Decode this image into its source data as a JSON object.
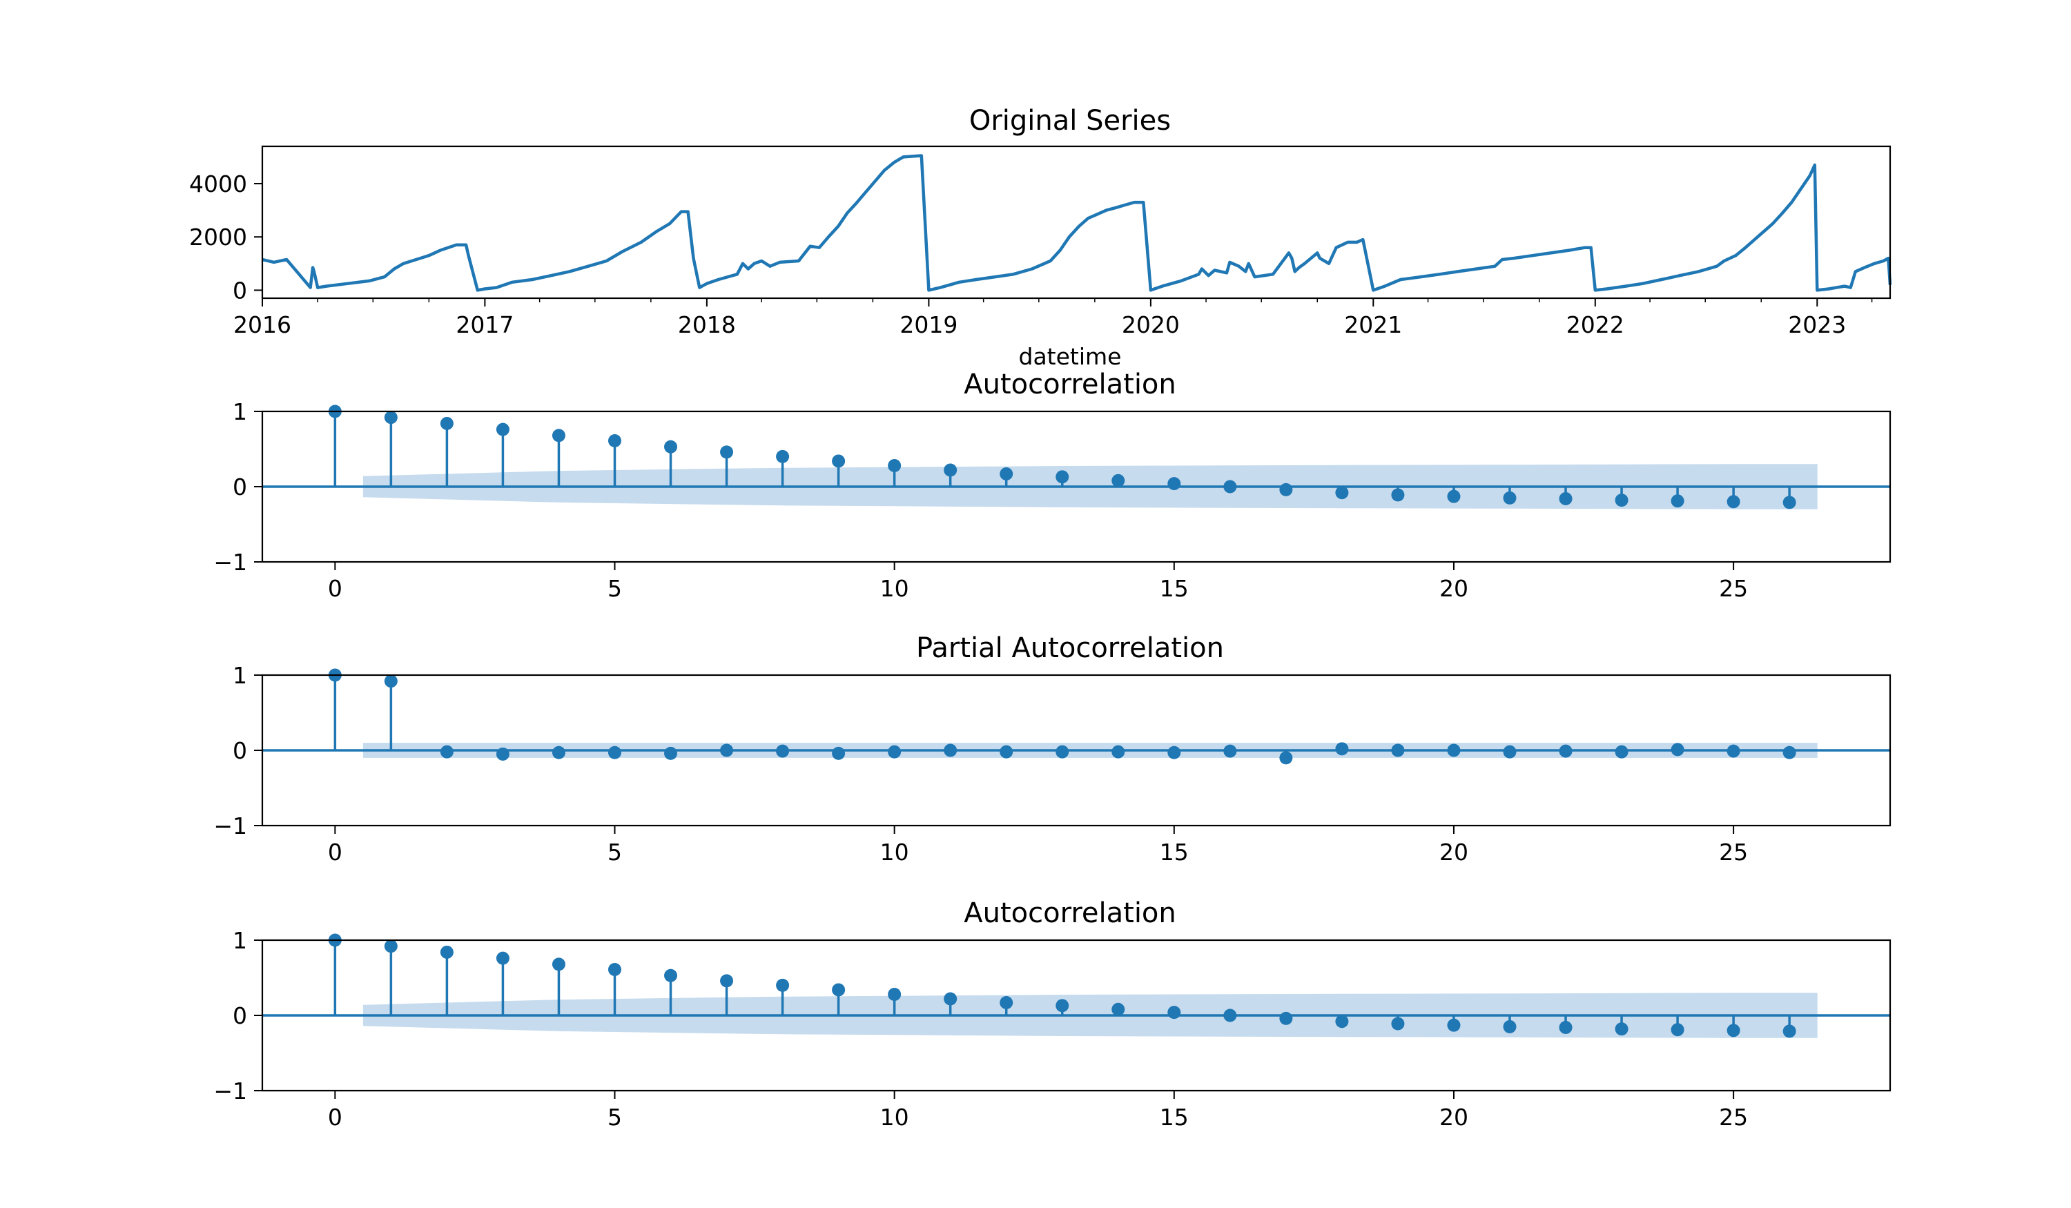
{
  "chart_data": [
    {
      "type": "line",
      "title": "Original Series",
      "xlabel": "datetime",
      "ylabel": "",
      "xlim": [
        "2016-01-01",
        "2023-05-01"
      ],
      "ylim": [
        -300,
        5400
      ],
      "xticks": [
        "2016",
        "2017",
        "2018",
        "2019",
        "2020",
        "2021",
        "2022",
        "2023"
      ],
      "yticks": [
        "0",
        "2000",
        "4000"
      ],
      "color": "#1f77b4",
      "series": [
        {
          "x": [
            "2016-01-01",
            "2016-01-20",
            "2016-02-10",
            "2016-03-20",
            "2016-03-24",
            "2016-03-26",
            "2016-04-01",
            "2016-04-15",
            "2016-05-20",
            "2016-06-25",
            "2016-07-20",
            "2016-08-05",
            "2016-08-20",
            "2016-09-10",
            "2016-10-01",
            "2016-10-20",
            "2016-11-15",
            "2016-12-01",
            "2016-12-05",
            "2016-12-20",
            "2017-01-01",
            "2017-01-20",
            "2017-02-15",
            "2017-03-20",
            "2017-04-20",
            "2017-05-20",
            "2017-06-20",
            "2017-07-20",
            "2017-08-15",
            "2017-09-15",
            "2017-10-10",
            "2017-11-01",
            "2017-11-20",
            "2017-12-01",
            "2017-12-10",
            "2017-12-20",
            "2018-01-01",
            "2018-01-20",
            "2018-02-20",
            "2018-03-01",
            "2018-03-10",
            "2018-03-20",
            "2018-04-01",
            "2018-04-15",
            "2018-05-01",
            "2018-06-01",
            "2018-06-20",
            "2018-07-05",
            "2018-07-20",
            "2018-08-05",
            "2018-08-20",
            "2018-09-05",
            "2018-09-20",
            "2018-10-05",
            "2018-10-20",
            "2018-11-05",
            "2018-11-20",
            "2018-12-20",
            "2019-01-01",
            "2019-01-20",
            "2019-02-20",
            "2019-03-20",
            "2019-04-20",
            "2019-05-20",
            "2019-06-20",
            "2019-07-20",
            "2019-08-05",
            "2019-08-20",
            "2019-09-05",
            "2019-09-20",
            "2019-10-05",
            "2019-10-20",
            "2019-11-05",
            "2019-11-20",
            "2019-12-05",
            "2019-12-20",
            "2020-01-01",
            "2020-01-20",
            "2020-02-20",
            "2020-03-20",
            "2020-03-25",
            "2020-04-05",
            "2020-04-15",
            "2020-05-05",
            "2020-05-10",
            "2020-05-25",
            "2020-06-05",
            "2020-06-10",
            "2020-06-20",
            "2020-07-20",
            "2020-08-15",
            "2020-08-20",
            "2020-08-25",
            "2020-09-01",
            "2020-09-10",
            "2020-10-01",
            "2020-10-05",
            "2020-10-20",
            "2020-11-01",
            "2020-11-20",
            "2020-12-05",
            "2020-12-15",
            "2021-01-01",
            "2021-01-20",
            "2021-02-15",
            "2021-03-20",
            "2021-04-20",
            "2021-05-20",
            "2021-06-20",
            "2021-07-20",
            "2021-08-01",
            "2021-08-20",
            "2021-09-20",
            "2021-10-20",
            "2021-11-20",
            "2021-12-15",
            "2021-12-25",
            "2022-01-01",
            "2022-01-20",
            "2022-02-20",
            "2022-03-20",
            "2022-04-20",
            "2022-05-20",
            "2022-06-20",
            "2022-07-20",
            "2022-08-01",
            "2022-08-20",
            "2022-09-05",
            "2022-09-20",
            "2022-10-05",
            "2022-10-20",
            "2022-11-05",
            "2022-11-20",
            "2022-12-05",
            "2022-12-20",
            "2022-12-28",
            "2023-01-01",
            "2023-01-20",
            "2023-02-15",
            "2023-02-25",
            "2023-03-05",
            "2023-03-20",
            "2023-04-05",
            "2023-04-20",
            "2023-04-28",
            "2023-05-01"
          ],
          "y": [
            1150,
            1050,
            1150,
            100,
            850,
            700,
            100,
            150,
            250,
            350,
            500,
            800,
            1000,
            1150,
            1300,
            1500,
            1700,
            1700,
            1300,
            0,
            50,
            100,
            300,
            400,
            550,
            700,
            900,
            1100,
            1450,
            1800,
            2200,
            2500,
            2950,
            2950,
            1200,
            100,
            250,
            400,
            600,
            1000,
            800,
            1000,
            1100,
            900,
            1050,
            1100,
            1650,
            1600,
            2000,
            2400,
            2900,
            3300,
            3700,
            4100,
            4500,
            4800,
            5000,
            5050,
            0,
            100,
            300,
            400,
            500,
            600,
            800,
            1100,
            1500,
            2000,
            2400,
            2700,
            2850,
            3000,
            3100,
            3200,
            3300,
            3300,
            0,
            150,
            350,
            600,
            800,
            550,
            750,
            650,
            1050,
            900,
            700,
            1000,
            500,
            600,
            1400,
            1200,
            700,
            850,
            1000,
            1400,
            1200,
            1000,
            1600,
            1800,
            1800,
            1900,
            0,
            150,
            400,
            500,
            600,
            700,
            800,
            900,
            1150,
            1200,
            1300,
            1400,
            1500,
            1600,
            1600,
            0,
            50,
            150,
            250,
            400,
            550,
            700,
            900,
            1100,
            1300,
            1600,
            1900,
            2200,
            2500,
            2900,
            3300,
            3800,
            4300,
            4700,
            0,
            50,
            150,
            100,
            700,
            850,
            1000,
            1100,
            1200,
            200
          ]
        }
      ]
    },
    {
      "type": "stem",
      "title": "Autocorrelation",
      "xlabel": "",
      "ylabel": "",
      "xlim": [
        -1.3,
        27.8
      ],
      "ylim": [
        -1,
        1
      ],
      "xticks": [
        "0",
        "5",
        "10",
        "15",
        "20",
        "25"
      ],
      "yticks": [
        "−1",
        "0",
        "1"
      ],
      "lags": [
        0,
        1,
        2,
        3,
        4,
        5,
        6,
        7,
        8,
        9,
        10,
        11,
        12,
        13,
        14,
        15,
        16,
        17,
        18,
        19,
        20,
        21,
        22,
        23,
        24,
        25,
        26
      ],
      "values": [
        1.0,
        0.92,
        0.84,
        0.76,
        0.68,
        0.61,
        0.53,
        0.46,
        0.4,
        0.34,
        0.28,
        0.22,
        0.17,
        0.13,
        0.08,
        0.04,
        0.0,
        -0.04,
        -0.08,
        -0.11,
        -0.13,
        -0.15,
        -0.16,
        -0.18,
        -0.19,
        -0.2,
        -0.21
      ],
      "confidence_band": [
        0.1,
        0.14,
        0.17,
        0.19,
        0.21,
        0.22,
        0.23,
        0.24,
        0.25,
        0.255,
        0.26,
        0.265,
        0.27,
        0.275,
        0.278,
        0.28,
        0.282,
        0.284,
        0.286,
        0.288,
        0.29,
        0.292,
        0.294,
        0.296,
        0.298,
        0.3,
        0.3
      ]
    },
    {
      "type": "stem",
      "title": "Partial Autocorrelation",
      "xlabel": "",
      "ylabel": "",
      "xlim": [
        -1.3,
        27.8
      ],
      "ylim": [
        -1,
        1
      ],
      "xticks": [
        "0",
        "5",
        "10",
        "15",
        "20",
        "25"
      ],
      "yticks": [
        "−1",
        "0",
        "1"
      ],
      "lags": [
        0,
        1,
        2,
        3,
        4,
        5,
        6,
        7,
        8,
        9,
        10,
        11,
        12,
        13,
        14,
        15,
        16,
        17,
        18,
        19,
        20,
        21,
        22,
        23,
        24,
        25,
        26
      ],
      "values": [
        1.0,
        0.92,
        -0.02,
        -0.05,
        -0.03,
        -0.03,
        -0.04,
        0.0,
        -0.01,
        -0.04,
        -0.02,
        0.0,
        -0.02,
        -0.02,
        -0.02,
        -0.03,
        -0.01,
        -0.1,
        0.02,
        0.0,
        0.0,
        -0.02,
        -0.01,
        -0.02,
        0.01,
        -0.01,
        -0.03
      ],
      "confidence_band": [
        0.1,
        0.1,
        0.1,
        0.1,
        0.1,
        0.1,
        0.1,
        0.1,
        0.1,
        0.1,
        0.1,
        0.1,
        0.1,
        0.1,
        0.1,
        0.1,
        0.1,
        0.1,
        0.1,
        0.1,
        0.1,
        0.1,
        0.1,
        0.1,
        0.1,
        0.1,
        0.1
      ]
    },
    {
      "type": "stem",
      "title": "Autocorrelation",
      "xlabel": "",
      "ylabel": "",
      "xlim": [
        -1.3,
        27.8
      ],
      "ylim": [
        -1,
        1
      ],
      "xticks": [
        "0",
        "5",
        "10",
        "15",
        "20",
        "25"
      ],
      "yticks": [
        "−1",
        "0",
        "1"
      ],
      "lags": [
        0,
        1,
        2,
        3,
        4,
        5,
        6,
        7,
        8,
        9,
        10,
        11,
        12,
        13,
        14,
        15,
        16,
        17,
        18,
        19,
        20,
        21,
        22,
        23,
        24,
        25,
        26
      ],
      "values": [
        1.0,
        0.92,
        0.84,
        0.76,
        0.68,
        0.61,
        0.53,
        0.46,
        0.4,
        0.34,
        0.28,
        0.22,
        0.17,
        0.13,
        0.08,
        0.04,
        0.0,
        -0.04,
        -0.08,
        -0.11,
        -0.13,
        -0.15,
        -0.16,
        -0.18,
        -0.19,
        -0.2,
        -0.21
      ],
      "confidence_band": [
        0.1,
        0.14,
        0.17,
        0.19,
        0.21,
        0.22,
        0.23,
        0.24,
        0.25,
        0.255,
        0.26,
        0.265,
        0.27,
        0.275,
        0.278,
        0.28,
        0.282,
        0.284,
        0.286,
        0.288,
        0.29,
        0.292,
        0.294,
        0.296,
        0.298,
        0.3,
        0.3
      ]
    }
  ]
}
